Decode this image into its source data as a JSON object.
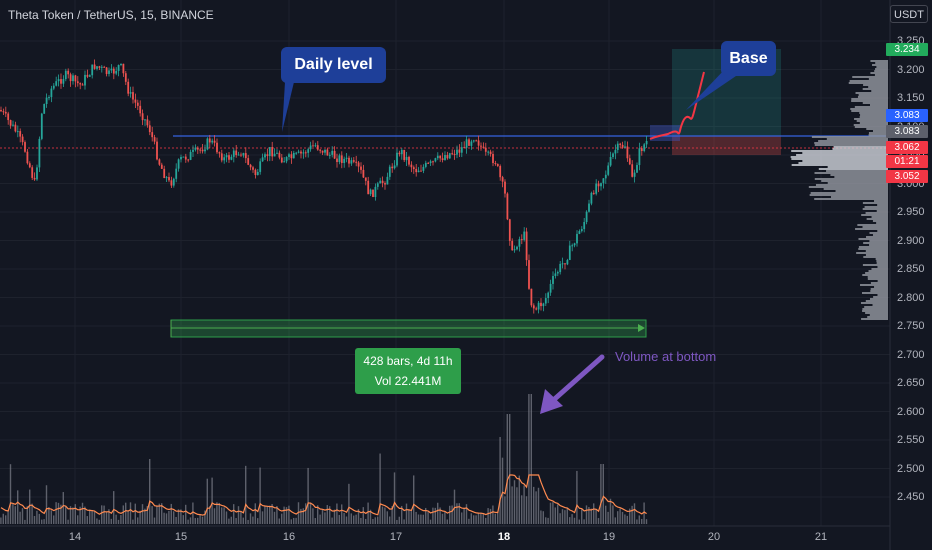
{
  "header": {
    "title": "Theta Token / TetherUS, 15, BINANCE",
    "unit": "USDT"
  },
  "price_axis": {
    "labels": [
      "3.250",
      "3.200",
      "3.150",
      "3.100",
      "3.050",
      "3.000",
      "2.950",
      "2.900",
      "2.850",
      "2.800",
      "2.750",
      "2.700",
      "2.650",
      "2.600",
      "2.550",
      "2.500",
      "2.450"
    ]
  },
  "time_axis": {
    "labels": [
      "14",
      "15",
      "16",
      "17",
      "18",
      "19",
      "20",
      "21"
    ],
    "bold_label": "18"
  },
  "price_tags": [
    {
      "value": "3.234",
      "color": "#22ab5c"
    },
    {
      "value": "3.083",
      "color": "#2962ff"
    },
    {
      "value": "3.083",
      "color": "#5d606b"
    },
    {
      "value": "3.062",
      "color": "#f23645"
    },
    {
      "value": "01:21",
      "color": "#f23645"
    },
    {
      "value": "3.052",
      "color": "#f23645"
    }
  ],
  "annotations": {
    "daily_level": "Daily level",
    "base": "Base",
    "measure_line1": "428 bars, 4d 11h",
    "measure_line2": "Vol 22.441M",
    "volume_note": "Volume at bottom"
  },
  "colors": {
    "background": "#131722",
    "up": "#26a69a",
    "down": "#ef5350",
    "level_line": "#3563e0",
    "measure": "#2e9e4a",
    "arrow": "#7e57c2"
  }
}
